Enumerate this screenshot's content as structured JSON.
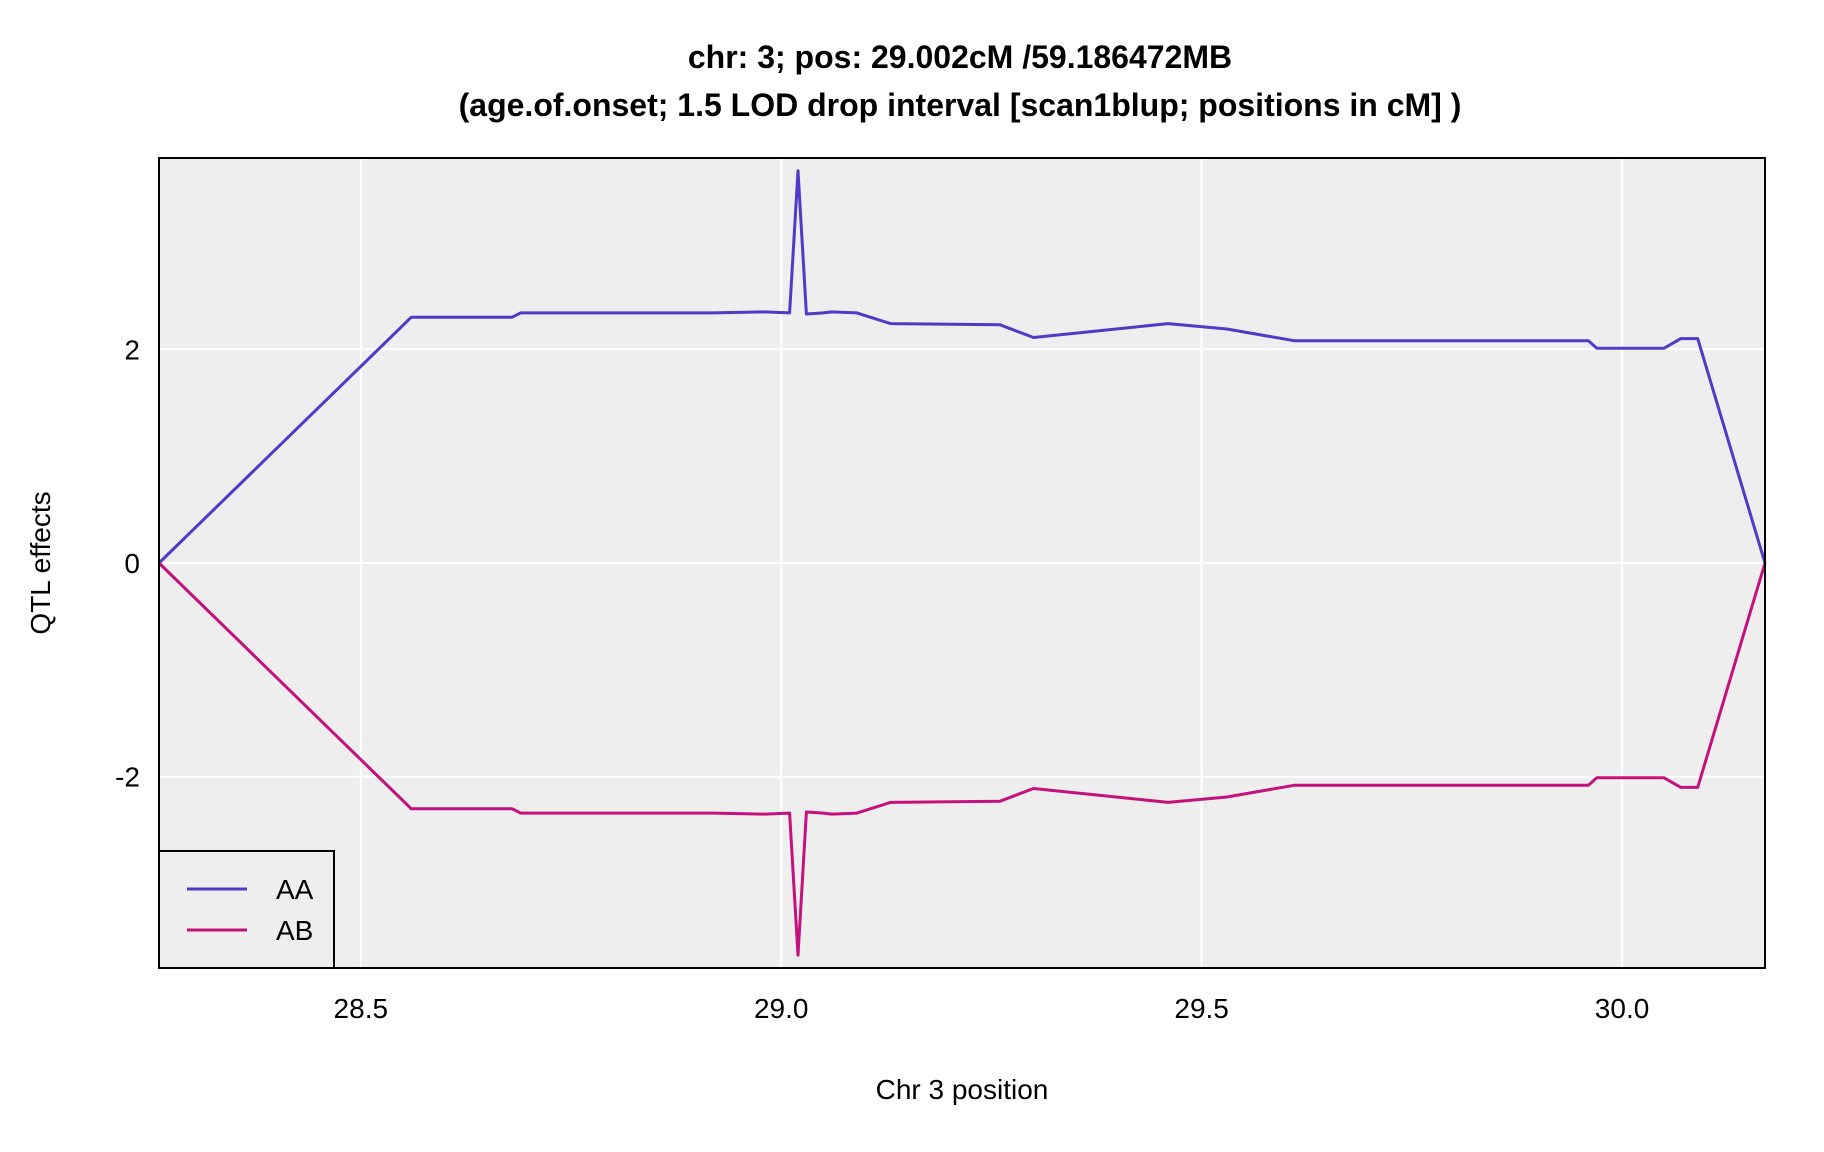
{
  "chart_data": {
    "type": "line",
    "title": "chr: 3; pos: 29.002cM /59.186472MB",
    "subtitle": "(age.of.onset; 1.5 LOD drop interval [scan1blup; positions in cM] )",
    "xlabel": "Chr 3 position",
    "ylabel": "QTL effects",
    "xlim": [
      28.26,
      30.17
    ],
    "ylim": [
      -3.79,
      3.79
    ],
    "x_ticks": [
      28.5,
      29.0,
      29.5,
      30.0
    ],
    "x_tick_labels": [
      "28.5",
      "29.0",
      "29.5",
      "30.0"
    ],
    "y_ticks": [
      -2,
      0,
      2
    ],
    "y_tick_labels": [
      "-2",
      "0",
      "2"
    ],
    "grid": true,
    "background": "#eeeeee",
    "legend_position": "bottom-left",
    "x": [
      28.26,
      28.56,
      28.68,
      28.69,
      28.92,
      28.98,
      29.01,
      29.02,
      29.03,
      29.05,
      29.06,
      29.09,
      29.13,
      29.26,
      29.3,
      29.46,
      29.53,
      29.61,
      29.96,
      29.97,
      30.05,
      30.07,
      30.09,
      30.17
    ],
    "series": [
      {
        "name": "AA",
        "color": "#4f3bc7",
        "values": [
          0,
          2.3,
          2.3,
          2.34,
          2.34,
          2.35,
          2.34,
          3.67,
          2.33,
          2.34,
          2.35,
          2.34,
          2.24,
          2.23,
          2.11,
          2.24,
          2.19,
          2.08,
          2.08,
          2.01,
          2.01,
          2.1,
          2.1,
          0
        ]
      },
      {
        "name": "AB",
        "color": "#c4117d",
        "values": [
          0,
          -2.3,
          -2.3,
          -2.34,
          -2.34,
          -2.35,
          -2.34,
          -3.67,
          -2.33,
          -2.34,
          -2.35,
          -2.34,
          -2.24,
          -2.23,
          -2.11,
          -2.24,
          -2.19,
          -2.08,
          -2.08,
          -2.01,
          -2.01,
          -2.1,
          -2.1,
          0
        ]
      }
    ]
  }
}
